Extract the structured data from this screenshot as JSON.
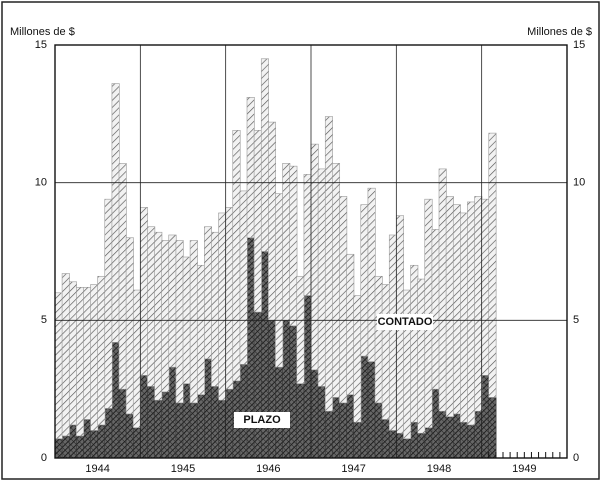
{
  "chart_data": {
    "type": "stacked-step-area",
    "y_label_left": "Millones de $",
    "y_label_right": "Millones de $",
    "annotations": [
      "CONTADO",
      "PLAZO"
    ],
    "x": [
      1944,
      1944.083,
      1944.167,
      1944.25,
      1944.333,
      1944.417,
      1944.5,
      1944.583,
      1944.667,
      1944.75,
      1944.833,
      1944.917,
      1945,
      1945.083,
      1945.167,
      1945.25,
      1945.333,
      1945.417,
      1945.5,
      1945.583,
      1945.667,
      1945.75,
      1945.833,
      1945.917,
      1946,
      1946.083,
      1946.167,
      1946.25,
      1946.333,
      1946.417,
      1946.5,
      1946.583,
      1946.667,
      1946.75,
      1946.833,
      1946.917,
      1947,
      1947.083,
      1947.167,
      1947.25,
      1947.333,
      1947.417,
      1947.5,
      1947.583,
      1947.667,
      1947.75,
      1947.833,
      1947.917,
      1948,
      1948.083,
      1948.167,
      1948.25,
      1948.333,
      1948.417,
      1948.5,
      1948.583,
      1948.667,
      1948.75,
      1948.833,
      1948.917,
      1949,
      1949.083
    ],
    "series": [
      {
        "name": "PLAZO",
        "color": "#333333",
        "values": [
          0.7,
          0.8,
          1.2,
          0.8,
          1.4,
          1.0,
          1.2,
          1.8,
          4.2,
          2.5,
          1.6,
          1.1,
          3.0,
          2.6,
          2.1,
          2.4,
          3.3,
          2.0,
          2.7,
          2.0,
          2.3,
          3.6,
          2.6,
          2.1,
          2.5,
          2.8,
          3.4,
          8.0,
          5.3,
          7.5,
          5.0,
          3.3,
          5.0,
          4.8,
          2.7,
          5.9,
          3.2,
          2.6,
          1.7,
          2.2,
          2.0,
          2.3,
          1.3,
          3.7,
          3.5,
          2.0,
          1.4,
          1.0,
          0.9,
          0.7,
          1.3,
          0.9,
          1.1,
          2.5,
          1.7,
          1.5,
          1.6,
          1.3,
          1.2,
          1.7,
          3.0,
          2.2
        ]
      },
      {
        "name": "CONTADO",
        "color": "#999999",
        "values": [
          5.3,
          5.9,
          5.2,
          5.4,
          4.8,
          5.3,
          5.4,
          7.6,
          9.4,
          8.2,
          6.4,
          5.0,
          6.1,
          5.8,
          6.1,
          5.5,
          4.8,
          5.9,
          4.6,
          5.9,
          4.7,
          4.8,
          5.6,
          6.8,
          6.6,
          9.1,
          6.3,
          5.1,
          6.6,
          7.0,
          7.2,
          6.3,
          5.7,
          5.8,
          3.9,
          4.4,
          8.2,
          7.9,
          10.7,
          8.5,
          7.5,
          5.1,
          4.6,
          5.5,
          6.3,
          4.6,
          4.9,
          7.1,
          7.9,
          5.4,
          5.7,
          5.6,
          8.3,
          5.8,
          8.8,
          8.0,
          7.6,
          7.6,
          8.1,
          7.8,
          6.4,
          9.6
        ]
      }
    ],
    "xlim": [
      1944,
      1950
    ],
    "xticks": [
      {
        "value": 1944.5,
        "label": "1944"
      },
      {
        "value": 1945.5,
        "label": "1945"
      },
      {
        "value": 1946.5,
        "label": "1946"
      },
      {
        "value": 1947.5,
        "label": "1947"
      },
      {
        "value": 1948.5,
        "label": "1948"
      },
      {
        "value": 1949.5,
        "label": "1949"
      }
    ],
    "xgrid": [
      1945,
      1946,
      1947,
      1948,
      1949
    ],
    "ylim": [
      0,
      15
    ],
    "yticks": [
      0,
      5,
      10,
      15
    ],
    "grid": true
  }
}
